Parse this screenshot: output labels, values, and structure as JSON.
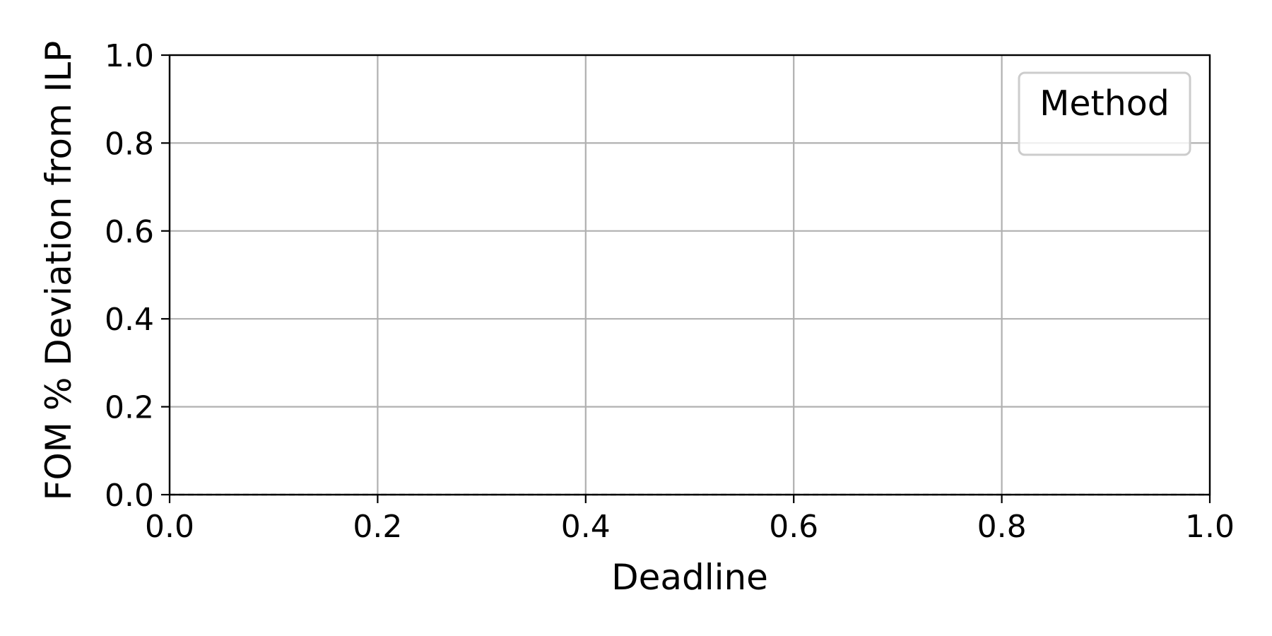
{
  "chart_data": {
    "type": "line",
    "title": "",
    "xlabel": "Deadline",
    "ylabel": "FOM % Deviation from ILP",
    "xlim": [
      0.0,
      1.0
    ],
    "ylim": [
      0.0,
      1.0
    ],
    "xticks": [
      "0.0",
      "0.2",
      "0.4",
      "0.6",
      "0.8",
      "1.0"
    ],
    "yticks": [
      "0.0",
      "0.2",
      "0.4",
      "0.6",
      "0.8",
      "1.0"
    ],
    "grid": true,
    "legend": {
      "title": "Method",
      "placement": "top-right",
      "entries": []
    },
    "series": [],
    "reference_line": {
      "y": 0.0,
      "style": "dashed",
      "color": "#000000"
    }
  }
}
